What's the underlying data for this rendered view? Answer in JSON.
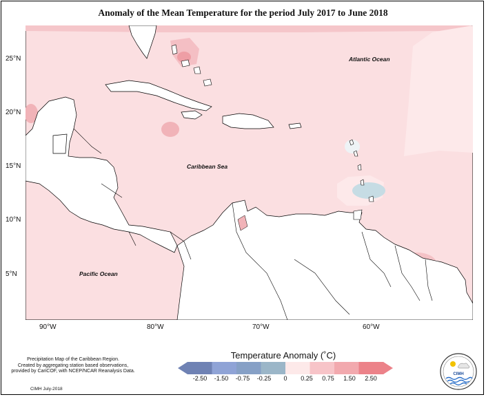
{
  "title": "Anomaly of the Mean Temperature for the period July 2017 to June 2018",
  "axes": {
    "lat_labels": [
      "25°N",
      "20°N",
      "15°N",
      "10°N",
      "5°N"
    ],
    "lon_labels": [
      "90°W",
      "80°W",
      "70°W",
      "60°W"
    ]
  },
  "labels": {
    "atlantic": "Atlantic Ocean",
    "caribbean": "Caribbean Sea",
    "pacific": "Pacific Ocean"
  },
  "notes": {
    "line1": "Precipitation Map of the Caribbean Region.",
    "line2": "Created by aggregating station based observations,",
    "line3": "provided by CariCOF, with NCEP/NCAR Reanalysis Data.",
    "credit": "CIMH July-2018"
  },
  "legend": {
    "title": "Temperature Anomaly (˚C)",
    "labels": [
      "-2.50",
      "-1.50",
      "-0.75",
      "-0.25",
      "0",
      "0.25",
      "0.75",
      "1.50",
      "2.50"
    ],
    "colors": [
      "#6f82b4",
      "#8fa3d6",
      "#86a0c6",
      "#9bb6c8",
      "#c6dce4",
      "#fde9e9",
      "#f7c4c8",
      "#f2a9ae",
      "#ec8289"
    ]
  },
  "logo": {
    "text": "CIMH"
  }
}
